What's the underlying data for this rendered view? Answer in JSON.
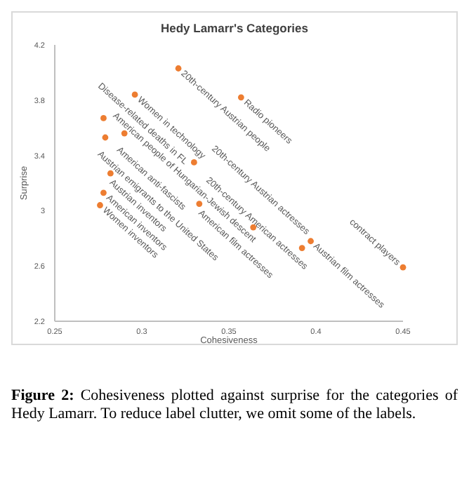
{
  "chart_data": {
    "type": "scatter",
    "title": "Hedy Lamarr's Categories",
    "xlabel": "Cohesiveness",
    "ylabel": "Surprise",
    "xlim": [
      0.25,
      0.45
    ],
    "xticks": [
      0.25,
      0.3,
      0.35,
      0.4,
      0.45
    ],
    "ylim": [
      2.2,
      4.2
    ],
    "yticks": [
      2.2,
      2.6,
      3,
      3.4,
      3.8,
      4.2
    ],
    "grid": false,
    "marker": "circle",
    "series": [
      {
        "color": "#ed7d31",
        "x": [
          0.321,
          0.357,
          0.296,
          0.278,
          0.29,
          0.279,
          0.33,
          0.282,
          0.278,
          0.276,
          0.333,
          0.364,
          0.392,
          0.397,
          0.45
        ],
        "values": [
          4.03,
          3.82,
          3.84,
          3.67,
          3.56,
          3.53,
          3.35,
          3.27,
          3.13,
          3.04,
          3.05,
          2.88,
          2.73,
          2.78,
          2.59
        ]
      }
    ],
    "annotations": [
      {
        "text": "20th-century Austrian people",
        "x": 0.321,
        "y": 4.03
      },
      {
        "text": "Radio pioneers",
        "x": 0.357,
        "y": 3.82
      },
      {
        "text": "Women in technology",
        "x": 0.296,
        "y": 3.84
      },
      {
        "text": "American people of Hungarian-Jewish descent",
        "x": 0.278,
        "y": 3.67
      },
      {
        "text": "American anti-fascists",
        "x": 0.29,
        "y": 3.56
      },
      {
        "text": "Austrian emigrants to the United States",
        "x": 0.279,
        "y": 3.53
      },
      {
        "text": "Disease-related deaths in FL",
        "x": 0.33,
        "y": 3.35
      },
      {
        "text": "Austrian inventors",
        "x": 0.282,
        "y": 3.27
      },
      {
        "text": "American inventors",
        "x": 0.278,
        "y": 3.13
      },
      {
        "text": "Women inventors",
        "x": 0.276,
        "y": 3.04
      },
      {
        "text": "American film actresses",
        "x": 0.333,
        "y": 3.05
      },
      {
        "text": "20th-century American actresses",
        "x": 0.364,
        "y": 2.88
      },
      {
        "text": "20th-century Austrian actresses",
        "x": 0.392,
        "y": 2.73
      },
      {
        "text": "Austrian film actresses",
        "x": 0.397,
        "y": 2.78
      },
      {
        "text": "contract players",
        "x": 0.45,
        "y": 2.59
      },
      "Figure 2: Cohesiveness plotted against surprise for the categories of Hedy Lamarr. To reduce label clutter, we omit some of the labels."
    ]
  }
}
